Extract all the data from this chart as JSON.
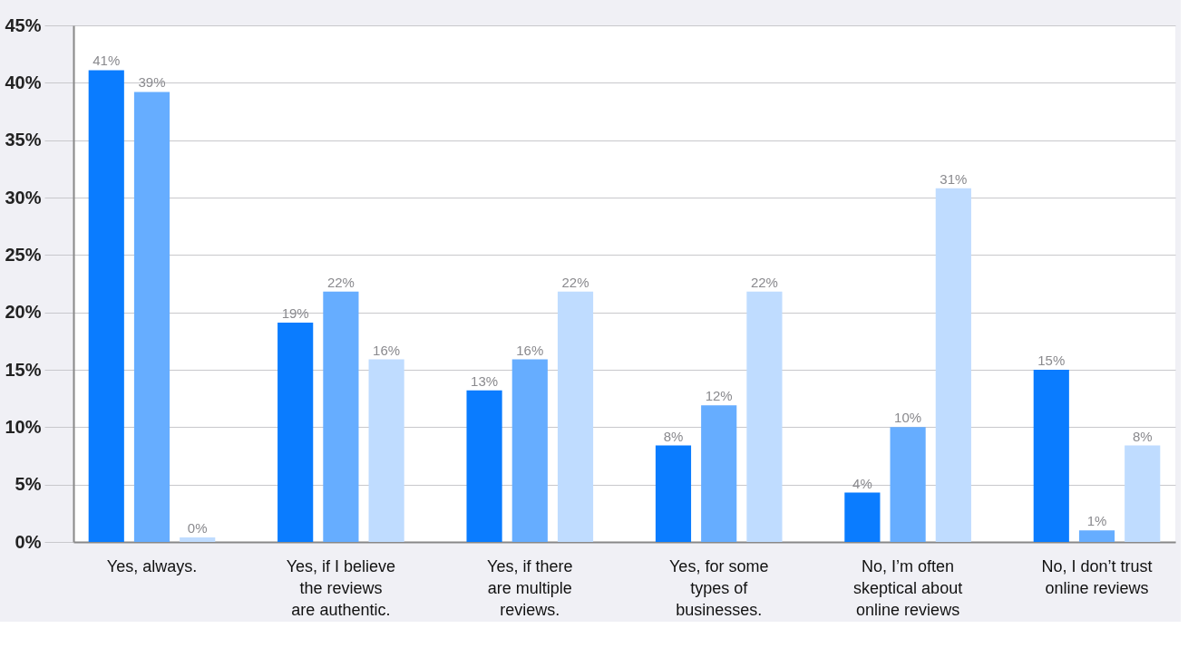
{
  "chart_data": {
    "type": "bar",
    "categories": [
      "Yes, always.",
      "Yes, if I believe\nthe reviews\nare authentic.",
      "Yes, if there\nare multiple\nreviews.",
      "Yes, for some\ntypes of\nbusinesses.",
      "No, I’m often\nskeptical about\nonline reviews",
      "No, I don’t trust\nonline reviews"
    ],
    "series": [
      {
        "color": "#0a7cff",
        "values": [
          41.1,
          19.1,
          13.2,
          8.4,
          4.3,
          15.0
        ],
        "value_labels": [
          "41%",
          "19%",
          "13%",
          "8%",
          "4%",
          "15%"
        ]
      },
      {
        "color": "#66adff",
        "values": [
          39.2,
          21.8,
          15.9,
          11.9,
          10.0,
          1.0
        ],
        "value_labels": [
          "39%",
          "22%",
          "16%",
          "12%",
          "10%",
          "1%"
        ]
      },
      {
        "color": "#bfdcff",
        "values": [
          0.4,
          15.9,
          21.8,
          21.8,
          30.8,
          8.4
        ],
        "value_labels": [
          "0%",
          "16%",
          "22%",
          "22%",
          "31%",
          "8%"
        ]
      }
    ],
    "ylim": [
      0,
      45
    ],
    "yticks": [
      {
        "value": 0,
        "label": "0%"
      },
      {
        "value": 5,
        "label": "5%"
      },
      {
        "value": 10,
        "label": "10%"
      },
      {
        "value": 15,
        "label": "15%"
      },
      {
        "value": 20,
        "label": "20%"
      },
      {
        "value": 25,
        "label": "25%"
      },
      {
        "value": 30,
        "label": "30%"
      },
      {
        "value": 35,
        "label": "35%"
      },
      {
        "value": 40,
        "label": "40%"
      },
      {
        "value": 45,
        "label": "45%"
      }
    ],
    "grid": "y",
    "legend": false
  }
}
